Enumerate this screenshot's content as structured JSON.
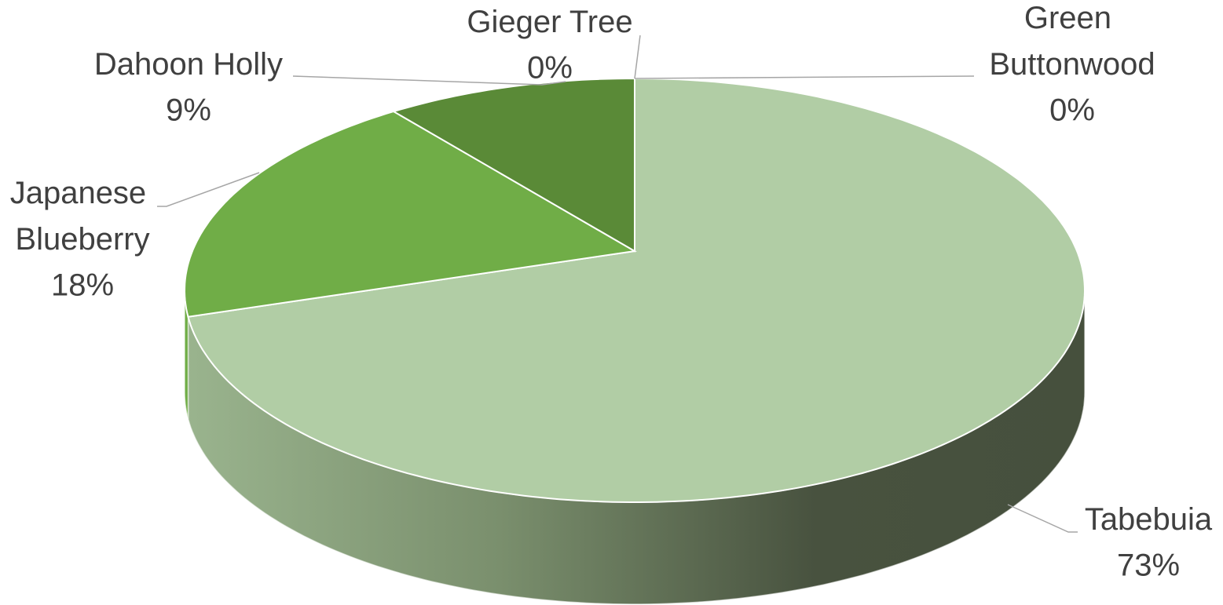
{
  "chart_data": {
    "type": "pie",
    "three_d": true,
    "categories": [
      "Tabebuia",
      "Japanese Blueberry",
      "Dahoon Holly",
      "Gieger Tree",
      "Green Buttonwood"
    ],
    "values": [
      73,
      18,
      9,
      0,
      0
    ],
    "value_labels": [
      "73%",
      "18%",
      "9%",
      "0%",
      "0%"
    ],
    "colors": [
      "#b1cda5",
      "#70ad47",
      "#5a8a37",
      "#4a7a2e",
      "#3f6b27"
    ]
  }
}
